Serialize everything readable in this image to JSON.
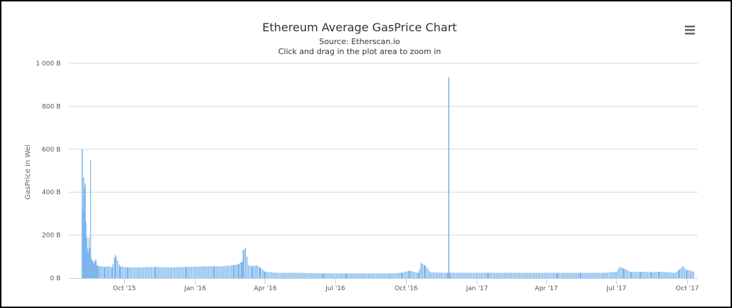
{
  "chart_data": {
    "type": "bar",
    "title": "Ethereum Average GasPrice Chart",
    "subtitle": "Source: Etherscan.io",
    "instruction": "Click and drag in the plot area to zoom in",
    "xlabel": "",
    "ylabel": "GasPrice In Wei",
    "ylim": [
      0,
      1000
    ],
    "y_unit": "B",
    "y_ticks": [
      "0 B",
      "200 B",
      "400 B",
      "600 B",
      "800 B",
      "1 000 B"
    ],
    "y_tick_values": [
      0,
      200,
      400,
      600,
      800,
      1000
    ],
    "x_ticks": [
      "Oct '15",
      "Jan '16",
      "Apr '16",
      "Jul '16",
      "Oct '16",
      "Jan '17",
      "Apr '17",
      "Jul '17",
      "Oct '17"
    ],
    "x_tick_dates": [
      "2015-10-01",
      "2016-01-01",
      "2016-04-01",
      "2016-07-01",
      "2016-10-01",
      "2017-01-01",
      "2017-04-01",
      "2017-07-01",
      "2017-10-01"
    ],
    "x_range": [
      "2015-08-07",
      "2017-10-09"
    ],
    "grid": "horizontal",
    "legend": "none",
    "color": "#7cb5ec",
    "series": [
      {
        "x": [
          "2015-08-07",
          "2015-08-08",
          "2015-08-09",
          "2015-08-10",
          "2015-08-11",
          "2015-08-12",
          "2015-08-13",
          "2015-08-14",
          "2015-08-15",
          "2015-08-16",
          "2015-08-17",
          "2015-08-18",
          "2015-08-19",
          "2015-08-20",
          "2015-08-22",
          "2015-08-24",
          "2015-08-26",
          "2015-08-28",
          "2015-08-31",
          "2015-09-05",
          "2015-09-10",
          "2015-09-15",
          "2015-09-19",
          "2015-09-25",
          "2015-10-05",
          "2015-10-20",
          "2015-11-10",
          "2015-12-01",
          "2015-12-20",
          "2016-01-10",
          "2016-01-25",
          "2016-02-05",
          "2016-02-20",
          "2016-02-26",
          "2016-03-01",
          "2016-03-03",
          "2016-03-06",
          "2016-03-10",
          "2016-03-15",
          "2016-03-20",
          "2016-03-25",
          "2016-03-31",
          "2016-04-15",
          "2016-05-15",
          "2016-06-15",
          "2016-07-15",
          "2016-08-15",
          "2016-09-10",
          "2016-09-25",
          "2016-10-05",
          "2016-10-12",
          "2016-10-17",
          "2016-10-20",
          "2016-10-25",
          "2016-11-01",
          "2016-11-15",
          "2016-11-24",
          "2016-11-25",
          "2016-11-26",
          "2016-12-15",
          "2017-01-15",
          "2017-02-15",
          "2017-03-15",
          "2017-04-15",
          "2017-05-15",
          "2017-06-15",
          "2017-06-25",
          "2017-07-01",
          "2017-07-05",
          "2017-07-10",
          "2017-07-20",
          "2017-08-01",
          "2017-08-15",
          "2017-08-25",
          "2017-09-05",
          "2017-09-15",
          "2017-09-20",
          "2017-09-25",
          "2017-09-30",
          "2017-10-05",
          "2017-10-09"
        ],
        "y": [
          600,
          320,
          470,
          420,
          440,
          260,
          190,
          140,
          120,
          190,
          140,
          550,
          90,
          80,
          70,
          85,
          60,
          55,
          55,
          52,
          55,
          50,
          108,
          55,
          50,
          50,
          52,
          50,
          52,
          55,
          55,
          55,
          60,
          65,
          75,
          130,
          140,
          60,
          55,
          60,
          50,
          30,
          25,
          25,
          22,
          22,
          22,
          22,
          25,
          35,
          28,
          25,
          70,
          60,
          28,
          25,
          25,
          935,
          25,
          25,
          25,
          25,
          25,
          25,
          25,
          25,
          28,
          30,
          52,
          45,
          28,
          30,
          28,
          30,
          28,
          25,
          38,
          55,
          38,
          35,
          30
        ]
      }
    ]
  },
  "menu": {
    "icon": "hamburger-menu-icon"
  }
}
